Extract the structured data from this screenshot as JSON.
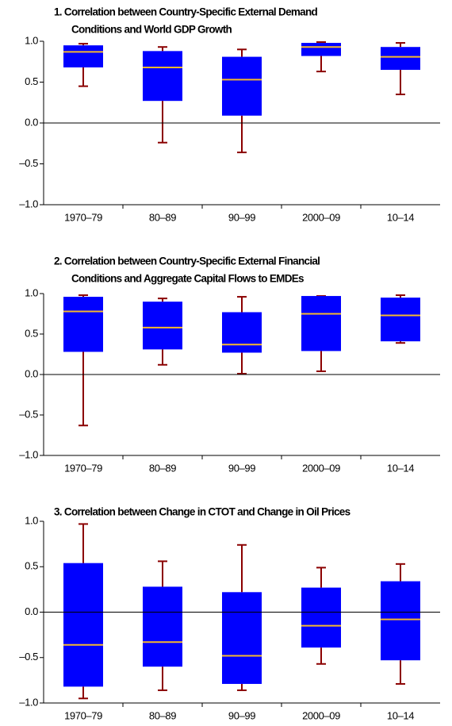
{
  "chart_data": [
    {
      "type": "box",
      "title": [
        "1. Correlation between Country-Specific External Demand",
        "Conditions and World GDP Growth"
      ],
      "categories": [
        "1970–79",
        "80–89",
        "90–99",
        "2000–09",
        "10–14"
      ],
      "boxes": [
        {
          "low": 0.45,
          "q1": 0.68,
          "median": 0.87,
          "q3": 0.95,
          "high": 0.97
        },
        {
          "low": -0.24,
          "q1": 0.27,
          "median": 0.68,
          "q3": 0.88,
          "high": 0.93
        },
        {
          "low": -0.36,
          "q1": 0.09,
          "median": 0.53,
          "q3": 0.81,
          "high": 0.9
        },
        {
          "low": 0.63,
          "q1": 0.82,
          "median": 0.93,
          "q3": 0.98,
          "high": 0.99
        },
        {
          "low": 0.35,
          "q1": 0.65,
          "median": 0.81,
          "q3": 0.93,
          "high": 0.98
        }
      ],
      "box_color": "#0000ff",
      "median_color": "#f5b82e",
      "whisker_color": "#8b0000",
      "ylim": [
        -1,
        1
      ],
      "yticks": [
        {
          "value": -1,
          "label": "–1.0"
        },
        {
          "value": -0.5,
          "label": "–0.5"
        },
        {
          "value": 0,
          "label": "0.0"
        },
        0.5,
        {
          "value": 1,
          "label": "1.0"
        }
      ]
    },
    {
      "type": "box",
      "title": [
        "2. Correlation between Country-Specific External Financial",
        "Conditions and Aggregate Capital Flows to EMDEs"
      ],
      "categories": [
        "1970–79",
        "80–89",
        "90–99",
        "2000–09",
        "10–14"
      ],
      "boxes": [
        {
          "low": -0.63,
          "q1": 0.28,
          "median": 0.78,
          "q3": 0.96,
          "high": 0.98
        },
        {
          "low": 0.12,
          "q1": 0.31,
          "median": 0.58,
          "q3": 0.9,
          "high": 0.94
        },
        {
          "low": 0.01,
          "q1": 0.27,
          "median": 0.37,
          "q3": 0.77,
          "high": 0.96
        },
        {
          "low": 0.04,
          "q1": 0.29,
          "median": 0.75,
          "q3": 0.97,
          "high": 0.97
        },
        {
          "low": 0.39,
          "q1": 0.41,
          "median": 0.73,
          "q3": 0.95,
          "high": 0.98
        }
      ],
      "box_color": "#0000ff",
      "median_color": "#f5b82e",
      "whisker_color": "#8b0000",
      "ylim": [
        -1,
        1
      ],
      "yticks": [
        {
          "value": -1,
          "label": "–1.0"
        },
        {
          "value": -0.5,
          "label": "–0.5"
        },
        {
          "value": 0,
          "label": "0.0"
        },
        0.5,
        {
          "value": 1,
          "label": "1.0"
        }
      ]
    },
    {
      "type": "box",
      "title": [
        "3. Correlation between Change in CTOT and Change in Oil Prices"
      ],
      "categories": [
        "1970–79",
        "80–89",
        "90–99",
        "2000–09",
        "10–14"
      ],
      "boxes": [
        {
          "low": -0.95,
          "q1": -0.82,
          "median": -0.36,
          "q3": 0.54,
          "high": 0.97
        },
        {
          "low": -0.86,
          "q1": -0.6,
          "median": -0.33,
          "q3": 0.28,
          "high": 0.56
        },
        {
          "low": -0.86,
          "q1": -0.79,
          "median": -0.48,
          "q3": 0.22,
          "high": 0.74
        },
        {
          "low": -0.57,
          "q1": -0.39,
          "median": -0.15,
          "q3": 0.27,
          "high": 0.49
        },
        {
          "low": -0.79,
          "q1": -0.53,
          "median": -0.08,
          "q3": 0.34,
          "high": 0.53
        }
      ],
      "box_color": "#0000ff",
      "median_color": "#f5b82e",
      "whisker_color": "#8b0000",
      "ylim": [
        -1,
        1
      ],
      "yticks": [
        {
          "value": -1,
          "label": "–1.0"
        },
        {
          "value": -0.5,
          "label": "–0.5"
        },
        {
          "value": 0,
          "label": "0.0"
        },
        0.5,
        {
          "value": 1,
          "label": "1.0"
        }
      ]
    }
  ]
}
